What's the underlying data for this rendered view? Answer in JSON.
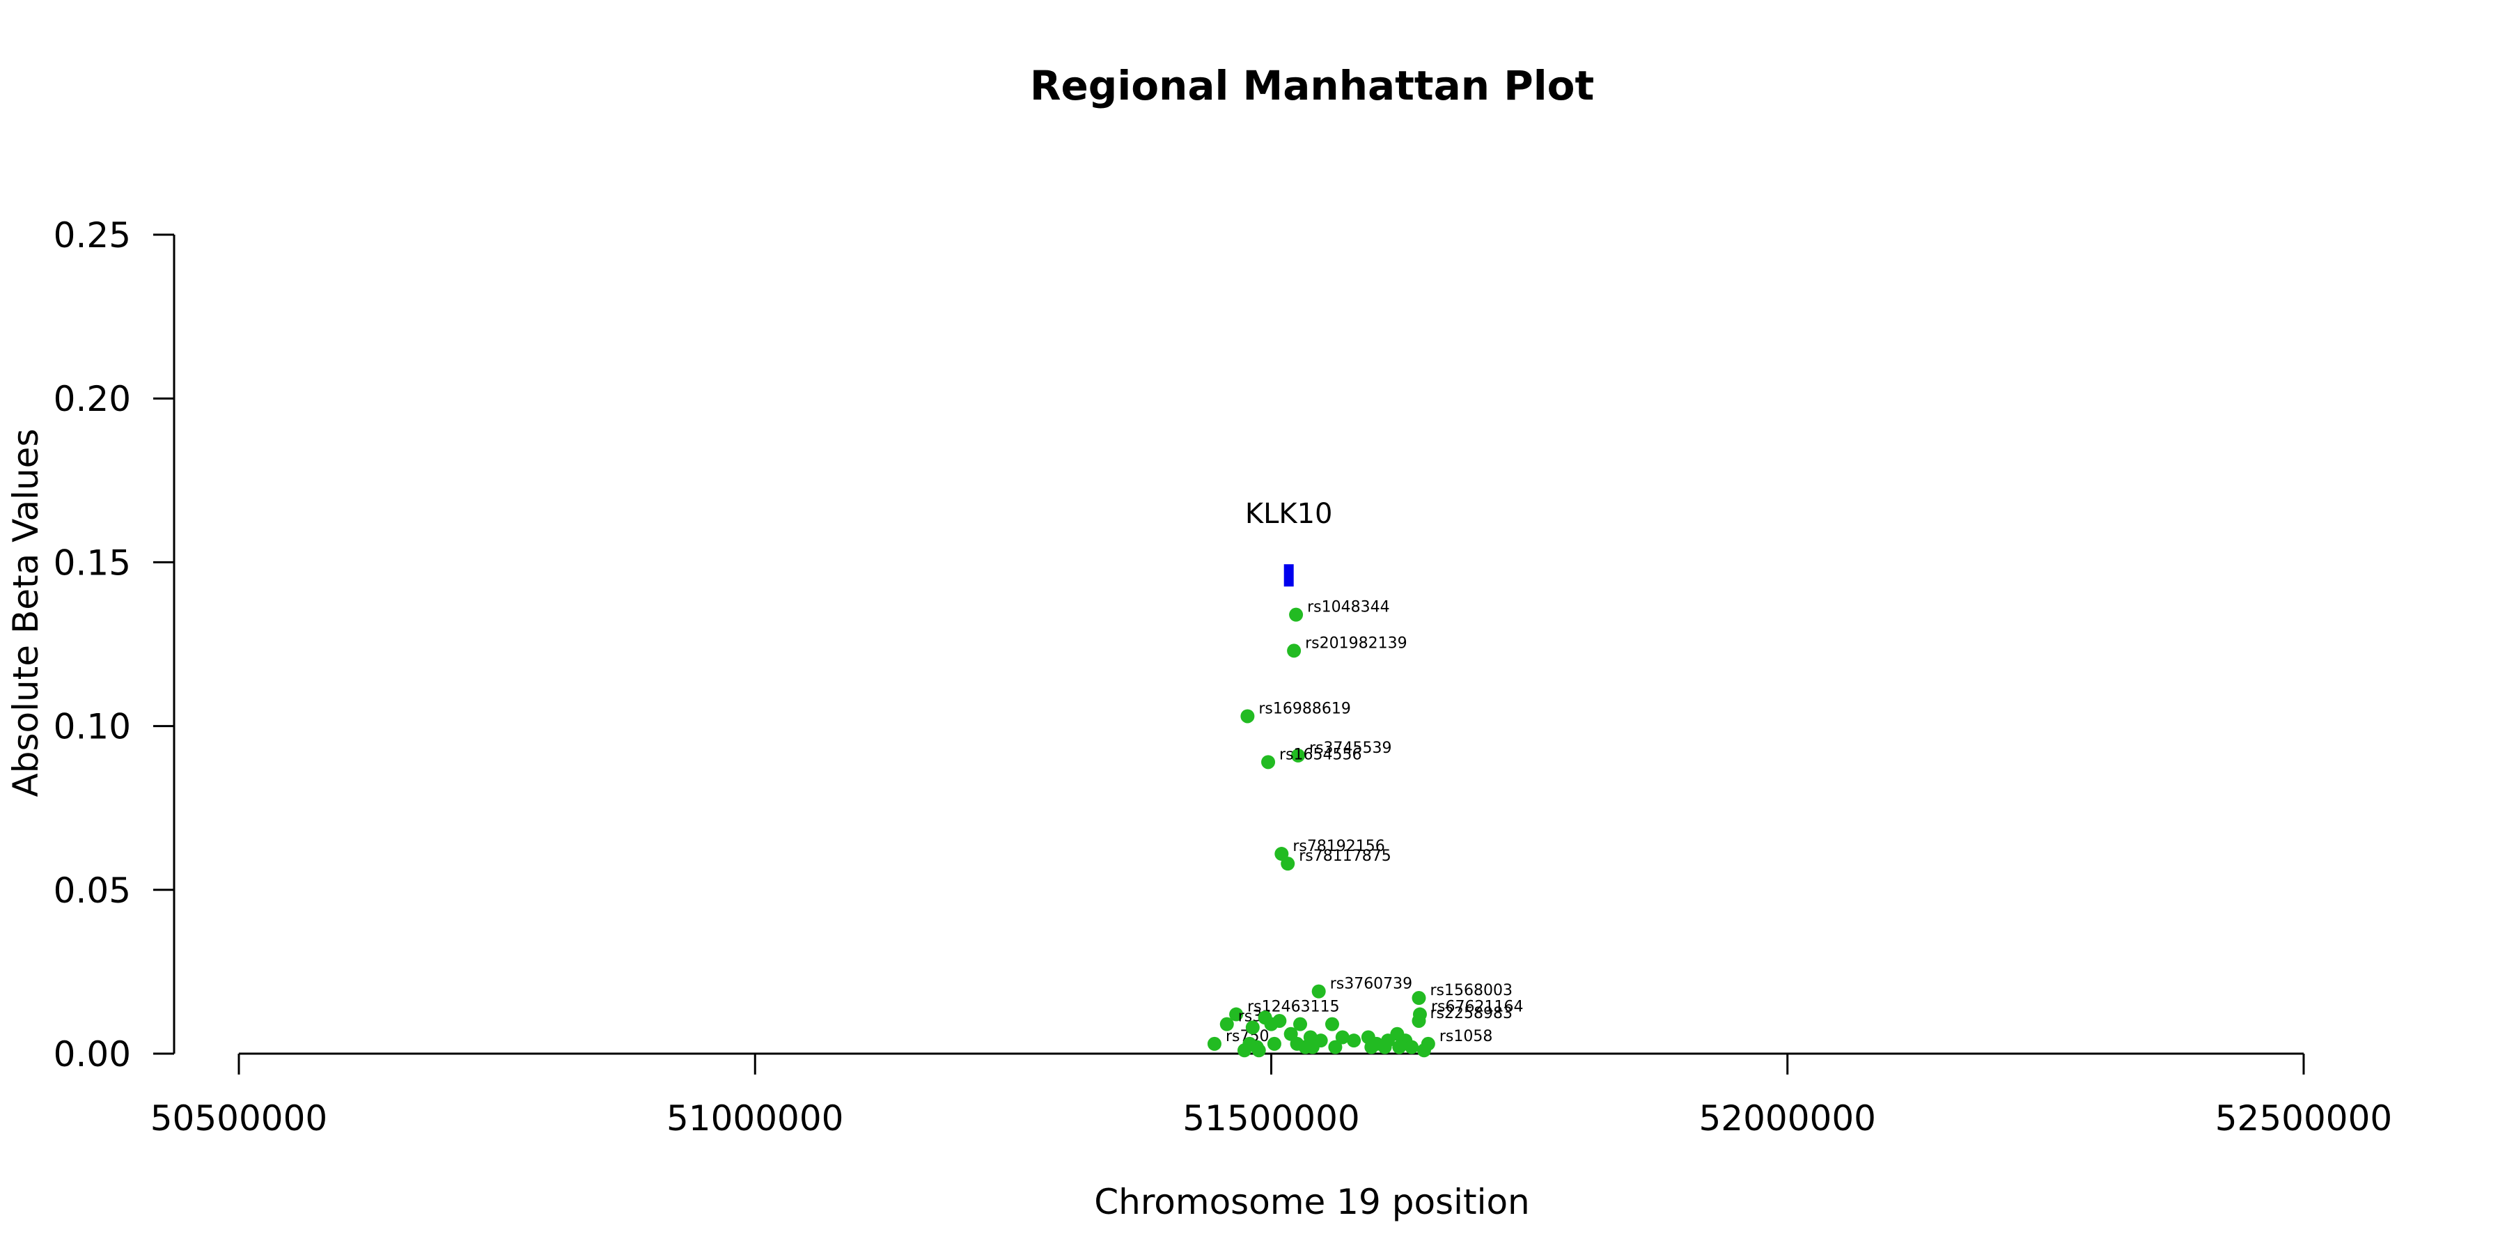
{
  "chart_data": {
    "type": "scatter",
    "title": "Regional Manhattan Plot",
    "xlabel": "Chromosome 19 position",
    "ylabel": "Absolute Beta Values",
    "xlim": [
      50500000,
      52500000
    ],
    "ylim": [
      0,
      0.25
    ],
    "x_ticks": [
      50500000,
      51000000,
      51500000,
      52000000,
      52500000
    ],
    "y_ticks": [
      0,
      0.05,
      0.1,
      0.15,
      0.2,
      0.25
    ],
    "x_tick_labels": [
      "50500000",
      "51000000",
      "51500000",
      "52000000",
      "52500000"
    ],
    "y_tick_labels": [
      "0.00",
      "0.05",
      "0.10",
      "0.15",
      "0.20",
      "0.25"
    ],
    "grid": false,
    "gene": {
      "name": "KLK10",
      "x": 51517000,
      "y": 0.146
    },
    "colors": {
      "points": "#22bb22",
      "gene": "#0000ee",
      "axis": "#000000"
    },
    "points": [
      {
        "label": "rs1048344",
        "x": 51524000,
        "y": 0.134
      },
      {
        "label": "rs201982139",
        "x": 51522000,
        "y": 0.123
      },
      {
        "label": "rs16988619",
        "x": 51477000,
        "y": 0.103
      },
      {
        "label": "rs3745539",
        "x": 51526000,
        "y": 0.091
      },
      {
        "label": "rs1654556",
        "x": 51497000,
        "y": 0.089
      },
      {
        "label": "rs78192156",
        "x": 51510000,
        "y": 0.061
      },
      {
        "label": "rs78117875",
        "x": 51516000,
        "y": 0.058
      },
      {
        "label": "rs3760739",
        "x": 51546000,
        "y": 0.019
      },
      {
        "label": "rs1568003",
        "x": 51643000,
        "y": 0.017
      },
      {
        "label": "rs67621164",
        "x": 51644000,
        "y": 0.012
      },
      {
        "label": "rs12463115",
        "x": 51466000,
        "y": 0.012
      },
      {
        "label": "rs2258983",
        "x": 51643000,
        "y": 0.01
      },
      {
        "label": "rs34",
        "x": 51457000,
        "y": 0.009
      },
      {
        "label": "rs750",
        "x": 51445000,
        "y": 0.003
      },
      {
        "label": "rs1058",
        "x": 51652000,
        "y": 0.003
      },
      {
        "label": "",
        "x": 51482000,
        "y": 0.008
      },
      {
        "label": "",
        "x": 51494000,
        "y": 0.011
      },
      {
        "label": "",
        "x": 51500000,
        "y": 0.009
      },
      {
        "label": "",
        "x": 51508000,
        "y": 0.01
      },
      {
        "label": "",
        "x": 51519000,
        "y": 0.006
      },
      {
        "label": "",
        "x": 51528000,
        "y": 0.009
      },
      {
        "label": "",
        "x": 51538000,
        "y": 0.005
      },
      {
        "label": "",
        "x": 51548000,
        "y": 0.004
      },
      {
        "label": "",
        "x": 51559000,
        "y": 0.009
      },
      {
        "label": "",
        "x": 51569000,
        "y": 0.005
      },
      {
        "label": "",
        "x": 51580000,
        "y": 0.004
      },
      {
        "label": "",
        "x": 51594000,
        "y": 0.005
      },
      {
        "label": "",
        "x": 51602000,
        "y": 0.003
      },
      {
        "label": "",
        "x": 51613000,
        "y": 0.004
      },
      {
        "label": "",
        "x": 51622000,
        "y": 0.006
      },
      {
        "label": "",
        "x": 51630000,
        "y": 0.004
      },
      {
        "label": "",
        "x": 51636000,
        "y": 0.002
      },
      {
        "label": "",
        "x": 51479000,
        "y": 0.003
      },
      {
        "label": "",
        "x": 51486000,
        "y": 0.002
      },
      {
        "label": "",
        "x": 51474000,
        "y": 0.001
      },
      {
        "label": "",
        "x": 51488000,
        "y": 0.001
      },
      {
        "label": "",
        "x": 51503000,
        "y": 0.003
      },
      {
        "label": "",
        "x": 51525000,
        "y": 0.003
      },
      {
        "label": "",
        "x": 51533000,
        "y": 0.002
      },
      {
        "label": "",
        "x": 51597000,
        "y": 0.002
      },
      {
        "label": "",
        "x": 51610000,
        "y": 0.002
      },
      {
        "label": "",
        "x": 51624000,
        "y": 0.002
      },
      {
        "label": "",
        "x": 51648000,
        "y": 0.001
      },
      {
        "label": "",
        "x": 51540000,
        "y": 0.002
      },
      {
        "label": "",
        "x": 51562000,
        "y": 0.002
      }
    ]
  }
}
